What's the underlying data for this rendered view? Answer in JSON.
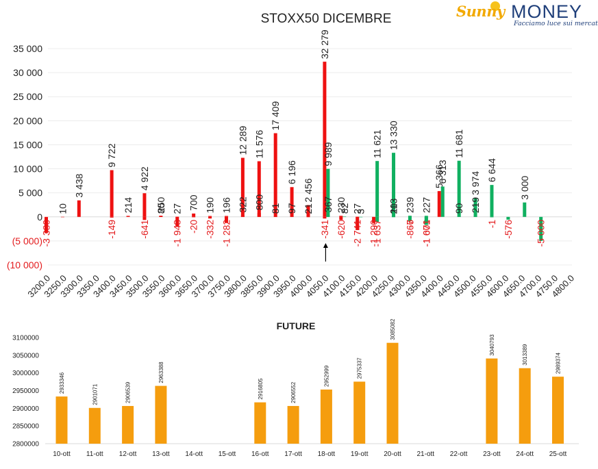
{
  "logo": {
    "word1": "Sunny",
    "word2": "MONEY",
    "tagline": "Facciamo luce sui mercati",
    "colors": {
      "sunny": "#f2a900",
      "money": "#1f3f7a"
    }
  },
  "colors": {
    "red": "#ee1111",
    "green": "#10b060",
    "orange": "#f59d0e",
    "negative_label": "#e31a1c",
    "text": "#222222"
  },
  "chart_data": [
    {
      "type": "bar",
      "title": "STOXX50 DICEMBRE",
      "xlabel": "",
      "ylabel": "",
      "ylim": [
        -10000,
        35000
      ],
      "y_ticks": [
        -10000,
        -5000,
        0,
        5000,
        10000,
        15000,
        20000,
        25000,
        30000,
        35000
      ],
      "y_tick_labels": [
        "(10 000)",
        "(5 000)",
        "0",
        "5 000",
        "10 000",
        "15 000",
        "20 000",
        "25 000",
        "30 000",
        "35 000"
      ],
      "categories": [
        "3200.0",
        "3250.0",
        "3300.0",
        "3350.0",
        "3400.0",
        "3450.0",
        "3500.0",
        "3550.0",
        "3600.0",
        "3650.0",
        "3700.0",
        "3750.0",
        "3800.0",
        "3850.0",
        "3900.0",
        "3950.0",
        "4000.0",
        "4050.0",
        "4100.0",
        "4150.0",
        "4200.0",
        "4250.0",
        "4300.0",
        "4350.0",
        "4400.0",
        "4450.0",
        "4500.0",
        "4550.0",
        "4600.0",
        "4650.0",
        "4700.0",
        "4750.0",
        "4800.0"
      ],
      "grid": true,
      "annotations": [
        {
          "type": "arrow",
          "at_category": "4050.0",
          "direction": "up"
        }
      ],
      "series": [
        {
          "color": "red",
          "points": [
            {
              "x": "3200.0",
              "y": -3380,
              "label": "-3 380"
            },
            {
              "x": "3250.0",
              "y": 10,
              "label": "10"
            },
            {
              "x": "3300.0",
              "y": 3438,
              "label": "3 438"
            },
            {
              "x": "3400.0",
              "y": -149,
              "label": "-149"
            },
            {
              "x": "3400.0",
              "y": 9722,
              "label": "9 722"
            },
            {
              "x": "3450.0",
              "y": 214,
              "label": "214"
            },
            {
              "x": "3500.0",
              "y": -641,
              "label": "-641"
            },
            {
              "x": "3500.0",
              "y": 4922,
              "label": "4 922"
            },
            {
              "x": "3550.0",
              "y": 80,
              "label": "80"
            },
            {
              "x": "3550.0",
              "y": 250,
              "label": "250"
            },
            {
              "x": "3600.0",
              "y": -1948,
              "label": "-1 948"
            },
            {
              "x": "3600.0",
              "y": 27,
              "label": "27"
            },
            {
              "x": "3650.0",
              "y": 700,
              "label": "700"
            },
            {
              "x": "3650.0",
              "y": -20,
              "label": "-20"
            },
            {
              "x": "3700.0",
              "y": -332,
              "label": "-332"
            },
            {
              "x": "3700.0",
              "y": 190,
              "label": "190"
            },
            {
              "x": "3750.0",
              "y": -1282,
              "label": "-1 282"
            },
            {
              "x": "3750.0",
              "y": 196,
              "label": "196"
            },
            {
              "x": "3800.0",
              "y": 12289,
              "label": "12 289"
            },
            {
              "x": "3800.0",
              "y": 322,
              "label": "322"
            },
            {
              "x": "3850.0",
              "y": 11576,
              "label": "11 576"
            },
            {
              "x": "3850.0",
              "y": 800,
              "label": "800"
            },
            {
              "x": "3900.0",
              "y": 17409,
              "label": "17 409"
            },
            {
              "x": "3900.0",
              "y": 81,
              "label": "81"
            },
            {
              "x": "3950.0",
              "y": 6196,
              "label": "6 196"
            },
            {
              "x": "3950.0",
              "y": 97,
              "label": "97"
            },
            {
              "x": "4000.0",
              "y": 2456,
              "label": "2 456"
            },
            {
              "x": "4000.0",
              "y": 21,
              "label": "21"
            },
            {
              "x": "4050.0",
              "y": -341,
              "label": "-341"
            },
            {
              "x": "4050.0",
              "y": 32279,
              "label": "32 279"
            },
            {
              "x": "4100.0",
              "y": -620,
              "label": "-620"
            },
            {
              "x": "4100.0",
              "y": 230,
              "label": "230"
            },
            {
              "x": "4150.0",
              "y": -2741,
              "label": "-2 741"
            },
            {
              "x": "4150.0",
              "y": 27,
              "label": "27"
            },
            {
              "x": "4200.0",
              "y": -1290,
              "label": "-1 290"
            },
            {
              "x": "4400.0",
              "y": 5366,
              "label": "5 366"
            }
          ]
        },
        {
          "color": "green",
          "points": [
            {
              "x": "4050.0",
              "y": 9989,
              "label": "9 989"
            },
            {
              "x": "4050.0",
              "y": 367,
              "label": "367"
            },
            {
              "x": "4100.0",
              "y": 82,
              "label": "82"
            },
            {
              "x": "4150.0",
              "y": 3,
              "label": "3"
            },
            {
              "x": "4200.0",
              "y": 11621,
              "label": "11 621"
            },
            {
              "x": "4200.0",
              "y": -1037,
              "label": "-1 037"
            },
            {
              "x": "4250.0",
              "y": 13330,
              "label": "13 330"
            },
            {
              "x": "4250.0",
              "y": 20,
              "label": "20"
            },
            {
              "x": "4250.0",
              "y": 113,
              "label": "113"
            },
            {
              "x": "4300.0",
              "y": -7,
              "label": "-7"
            },
            {
              "x": "4300.0",
              "y": -866,
              "label": "-866"
            },
            {
              "x": "4300.0",
              "y": 239,
              "label": "239"
            },
            {
              "x": "4350.0",
              "y": 227,
              "label": "227"
            },
            {
              "x": "4350.0",
              "y": -1009,
              "label": "-1 009"
            },
            {
              "x": "4350.0",
              "y": -1671,
              "label": "-1 671"
            },
            {
              "x": "4400.0",
              "y": 6313,
              "label": "6 313"
            },
            {
              "x": "4450.0",
              "y": 11681,
              "label": "11 681"
            },
            {
              "x": "4450.0",
              "y": 90,
              "label": "90"
            },
            {
              "x": "4500.0",
              "y": 3974,
              "label": "3 974"
            },
            {
              "x": "4500.0",
              "y": 219,
              "label": "219"
            },
            {
              "x": "4550.0",
              "y": 6644,
              "label": "6 644"
            },
            {
              "x": "4550.0",
              "y": -1,
              "label": "-1"
            },
            {
              "x": "4600.0",
              "y": -576,
              "label": "-576"
            },
            {
              "x": "4650.0",
              "y": 3000,
              "label": "3 000"
            },
            {
              "x": "4700.0",
              "y": -5000,
              "label": "-5 000"
            }
          ]
        }
      ]
    },
    {
      "type": "bar",
      "title": "FUTURE",
      "xlabel": "",
      "ylabel": "",
      "ylim": [
        2800000,
        3100000
      ],
      "y_ticks": [
        2800000,
        2850000,
        2900000,
        2950000,
        3000000,
        3050000,
        3100000
      ],
      "y_tick_labels": [
        "2800000",
        "2850000",
        "2900000",
        "2950000",
        "3000000",
        "3050000",
        "3100000"
      ],
      "categories": [
        "10-ott",
        "11-ott",
        "12-ott",
        "13-ott",
        "14-ott",
        "15-ott",
        "16-ott",
        "17-ott",
        "18-ott",
        "19-ott",
        "20-ott",
        "21-ott",
        "22-ott",
        "23-ott",
        "24-ott",
        "25-ott"
      ],
      "values": [
        2933346,
        2901071,
        2906539,
        2963388,
        null,
        null,
        2916805,
        2906552,
        2952999,
        2975337,
        3085082,
        null,
        null,
        3040793,
        3013389,
        2989374
      ],
      "value_labels": [
        "2933346",
        "2901071",
        "2906539",
        "2963388",
        "",
        "",
        "2916805",
        "2906552",
        "2952999",
        "2975337",
        "3085082",
        "",
        "",
        "3040793",
        "3013389",
        "2989374"
      ],
      "grid": false
    }
  ]
}
